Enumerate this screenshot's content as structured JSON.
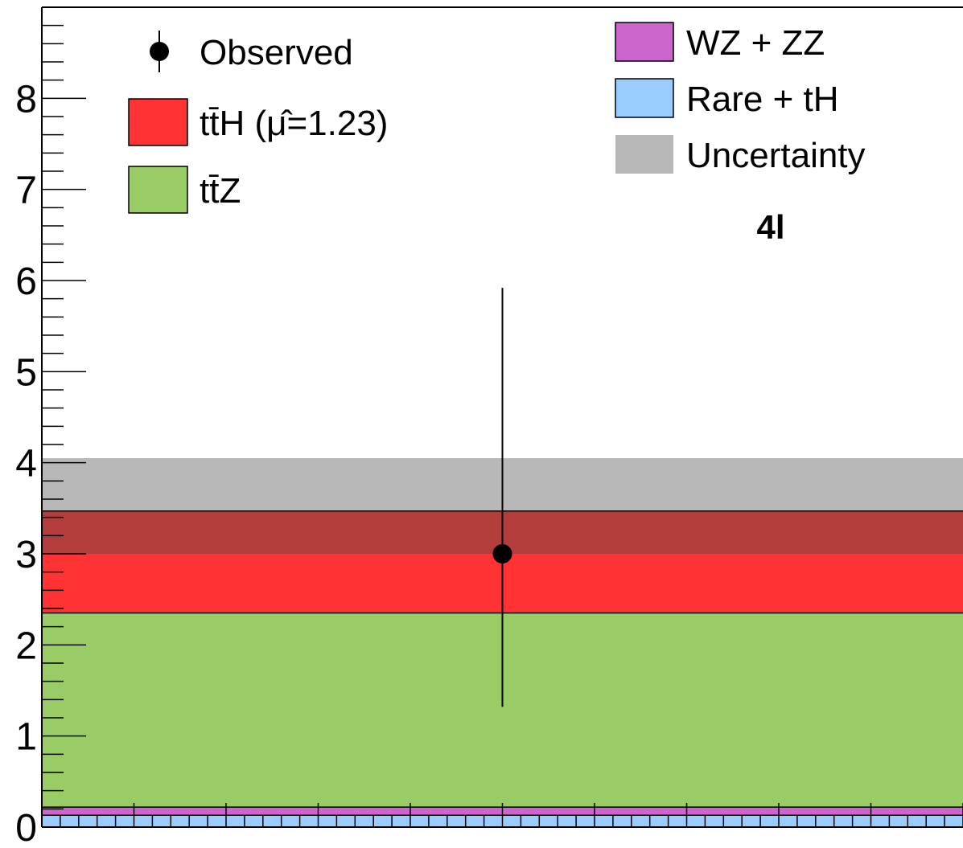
{
  "chart_data": {
    "type": "bar",
    "region_label": "4l",
    "ylim": [
      0,
      9
    ],
    "y_ticks": [
      {
        "value": 0,
        "label": "0"
      },
      {
        "value": 1,
        "label": "1"
      },
      {
        "value": 2,
        "label": "2"
      },
      {
        "value": 3,
        "label": "3"
      },
      {
        "value": 4,
        "label": "4"
      },
      {
        "value": 5,
        "label": "5"
      },
      {
        "value": 6,
        "label": "6"
      },
      {
        "value": 7,
        "label": "7"
      },
      {
        "value": 8,
        "label": "8"
      }
    ],
    "stack": [
      {
        "key": "rare",
        "name": "Rare + tH",
        "value": 0.13,
        "color": "#99ccff"
      },
      {
        "key": "wzzz",
        "name": "WZ + ZZ",
        "value": 0.09,
        "color": "#cc66cc"
      },
      {
        "key": "ttz",
        "name": "tt̄Z",
        "value": 2.13,
        "color": "#99cc66"
      },
      {
        "key": "tth",
        "name": "tt̄H (μ̂=1.23)",
        "value": 1.12,
        "color": "#ff3333"
      }
    ],
    "uncertainty": {
      "name": "Uncertainty",
      "low": 3.0,
      "high": 4.05,
      "color": "#b8b8b8",
      "overlap_color": "#b33d3d"
    },
    "observed": {
      "name": "Observed",
      "value": 3,
      "err_low": 1.68,
      "err_high": 2.92
    }
  },
  "legend": [
    {
      "key": "observed",
      "type": "marker",
      "label": "Observed"
    },
    {
      "key": "tth",
      "type": "box",
      "label": "tt̄H (μ̂=1.23)",
      "color": "#ff3333"
    },
    {
      "key": "ttz",
      "type": "box",
      "label": "tt̄Z",
      "color": "#99cc66"
    },
    {
      "key": "wzzz",
      "type": "box",
      "label": "WZ + ZZ",
      "color": "#cc66cc"
    },
    {
      "key": "rare",
      "type": "box",
      "label": "Rare + tH",
      "color": "#99ccff"
    },
    {
      "key": "unc",
      "type": "fill",
      "label": "Uncertainty",
      "color": "#b8b8b8"
    }
  ]
}
